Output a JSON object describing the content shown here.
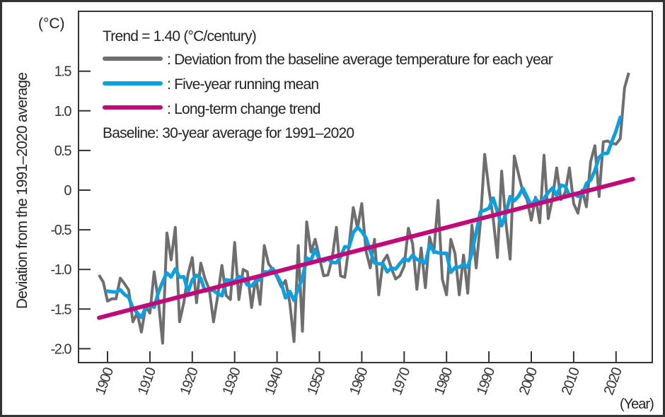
{
  "chart_data": {
    "type": "line",
    "ylabel": "Deviation from the 1991–2020 average",
    "yunit": "(°C)",
    "xunit": "(Year)",
    "trend_text": "Trend = 1.40 (°C/century)",
    "baseline_text": "Baseline: 30-year average for 1991–2020",
    "ylim": [
      -2.1,
      2.4
    ],
    "xlim": [
      1893,
      2033
    ],
    "yticks": [
      "1.5",
      "1.0",
      "0.5",
      "0",
      "-0.5",
      "-1.0",
      "-1.5",
      "-2.0"
    ],
    "ytick_values": [
      1.5,
      1.0,
      0.5,
      0,
      -0.5,
      -1.0,
      -1.5,
      -2.0
    ],
    "xticks": [
      "1900",
      "1910",
      "1920",
      "1930",
      "1940",
      "1950",
      "1960",
      "1970",
      "1980",
      "1990",
      "2000",
      "2010",
      "2020"
    ],
    "grid": false,
    "legend_position": "top-left",
    "series": [
      {
        "name": ": Deviation from the baseline average temperature for each year",
        "color": "#6e6e6e",
        "x_start": 1898,
        "values": [
          -1.07,
          -1.16,
          -1.4,
          -1.37,
          -1.37,
          -1.11,
          -1.18,
          -1.26,
          -1.66,
          -1.55,
          -1.79,
          -1.47,
          -1.55,
          -1.03,
          -1.4,
          -1.93,
          -0.54,
          -0.88,
          -0.47,
          -1.66,
          -1.42,
          -1.06,
          -0.85,
          -1.42,
          -0.92,
          -1.12,
          -1.25,
          -1.66,
          -1.34,
          -0.95,
          -1.33,
          -1.38,
          -0.66,
          -1.38,
          -1.0,
          -1.03,
          -1.48,
          -1.09,
          -1.44,
          -0.7,
          -0.93,
          -1.0,
          -1.1,
          -1.22,
          -1.14,
          -1.42,
          -1.91,
          -0.7,
          -1.78,
          -0.4,
          -0.78,
          -0.62,
          -0.85,
          -1.08,
          -1.07,
          -0.86,
          -0.47,
          -1.08,
          -1.1,
          -0.7,
          -0.22,
          -0.48,
          -0.17,
          -0.77,
          -0.98,
          -0.62,
          -1.32,
          -0.9,
          -0.82,
          -0.99,
          -1.12,
          -1.08,
          -0.96,
          -0.48,
          -0.68,
          -1.25,
          -0.73,
          -1.23,
          -0.59,
          -0.79,
          -0.13,
          -1.12,
          -1.32,
          -0.62,
          -0.8,
          -1.32,
          -0.82,
          -1.3,
          -0.44,
          -0.98,
          -0.4,
          0.45,
          0.01,
          -0.35,
          -0.85,
          0.24,
          -0.41,
          -0.87,
          0.43,
          0.2,
          -0.02,
          -0.12,
          -0.38,
          -0.09,
          -0.41,
          0.44,
          -0.36,
          -0.1,
          0.28,
          -0.12,
          -0.03,
          0.28,
          -0.17,
          -0.29,
          0.0,
          -0.21,
          0.36,
          0.56,
          -0.08,
          0.61,
          0.62,
          0.59,
          0.58,
          0.65,
          1.29,
          1.48
        ]
      },
      {
        "name": ": Five-year running mean",
        "color": "#0aa0e2",
        "window": 5
      },
      {
        "name": ": Long-term change trend",
        "color": "#bf0a78",
        "slope_per_century": 1.4,
        "start": [
          1898,
          -1.61
        ],
        "end": [
          2024,
          0.14
        ]
      }
    ]
  }
}
